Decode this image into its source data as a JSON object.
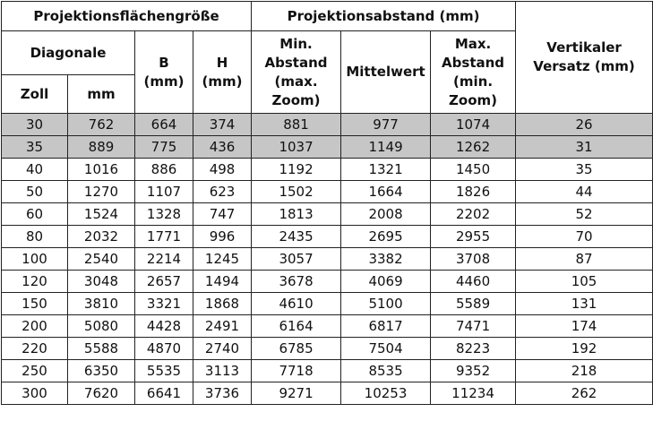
{
  "table": {
    "header": {
      "size_group": "Projektionsflächengröße",
      "distance_group": "Projektionsabstand (mm)",
      "diagonal": "Diagonale",
      "inch": "Zoll",
      "mm": "mm",
      "width": "B (mm)",
      "height": "H (mm)",
      "min_distance": "Min. Abstand (max. Zoom)",
      "average": "Mittelwert",
      "max_distance": "Max. Abstand (min. Zoom)",
      "offset": "Vertikaler Versatz (mm)"
    },
    "rows": [
      [
        30,
        762,
        664,
        374,
        881,
        977,
        1074,
        26
      ],
      [
        35,
        889,
        775,
        436,
        1037,
        1149,
        1262,
        31
      ],
      [
        40,
        1016,
        886,
        498,
        1192,
        1321,
        1450,
        35
      ],
      [
        50,
        1270,
        1107,
        623,
        1502,
        1664,
        1826,
        44
      ],
      [
        60,
        1524,
        1328,
        747,
        1813,
        2008,
        2202,
        52
      ],
      [
        80,
        2032,
        1771,
        996,
        2435,
        2695,
        2955,
        70
      ],
      [
        100,
        2540,
        2214,
        1245,
        3057,
        3382,
        3708,
        87
      ],
      [
        120,
        3048,
        2657,
        1494,
        3678,
        4069,
        4460,
        105
      ],
      [
        150,
        3810,
        3321,
        1868,
        4610,
        5100,
        5589,
        131
      ],
      [
        200,
        5080,
        4428,
        2491,
        6164,
        6817,
        7471,
        174
      ],
      [
        220,
        5588,
        4870,
        2740,
        6785,
        7504,
        8223,
        192
      ],
      [
        250,
        6350,
        5535,
        3113,
        7718,
        8535,
        9352,
        218
      ],
      [
        300,
        7620,
        6641,
        3736,
        9271,
        10253,
        11234,
        262
      ]
    ]
  }
}
